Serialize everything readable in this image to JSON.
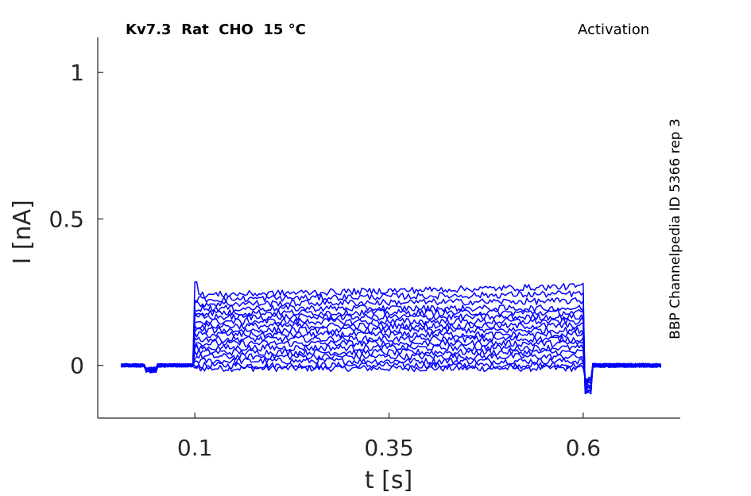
{
  "title_left": "Kv7.3  Rat  CHO  15 °C",
  "title_right": "Activation",
  "side_label": "BBP Channelpedia ID 5366 rep 3",
  "colors": {
    "trace": "#0000ff",
    "axis": "#262626"
  },
  "chart_data": {
    "type": "line",
    "xlabel": "t [s]",
    "ylabel": "I [nA]",
    "xlim": [
      -0.025,
      0.725
    ],
    "ylim": [
      -0.18,
      1.12
    ],
    "xticks": [
      0.1,
      0.35,
      0.6
    ],
    "xtick_labels": [
      "0.1",
      "0.35",
      "0.6"
    ],
    "yticks": [
      0,
      0.5,
      1
    ],
    "ytick_labels": [
      "0",
      "0.5",
      "1"
    ],
    "grid": false,
    "legend": "none",
    "pulse_start": 0.1,
    "pulse_end": 0.6,
    "t_start": 0.005,
    "t_end": 0.7,
    "series_plateau_values": [
      -0.01,
      0.0,
      0.015,
      0.03,
      0.045,
      0.06,
      0.075,
      0.09,
      0.105,
      0.12,
      0.135,
      0.15,
      0.165,
      0.18,
      0.195,
      0.21,
      0.225,
      0.24
    ]
  }
}
